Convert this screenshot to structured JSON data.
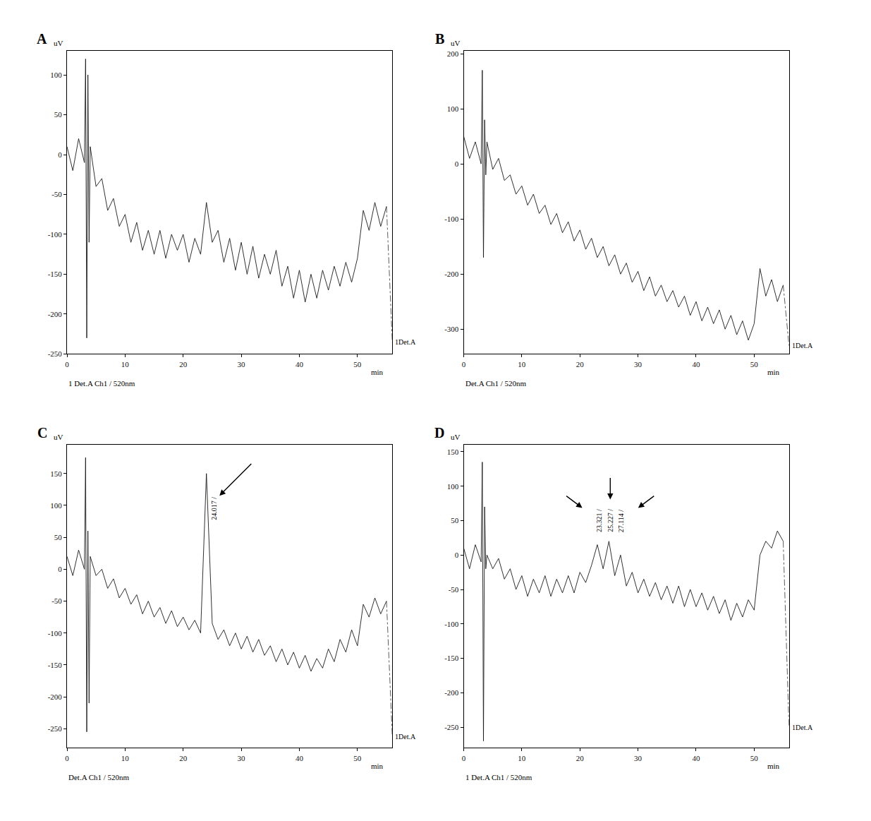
{
  "chart_data": [
    {
      "type": "line",
      "title": "A",
      "subtitle": "1 Det.A Ch1 / 520nm",
      "xlabel": "min",
      "ylabel": "uV",
      "color": "#1a1a1a",
      "x": [
        0,
        1,
        2,
        3,
        3.2,
        3.4,
        3.6,
        3.8,
        4,
        5,
        6,
        7,
        8,
        9,
        10,
        11,
        12,
        13,
        14,
        15,
        16,
        17,
        18,
        19,
        20,
        21,
        22,
        23,
        24,
        25,
        26,
        27,
        28,
        29,
        30,
        31,
        32,
        33,
        34,
        35,
        36,
        37,
        38,
        39,
        40,
        41,
        42,
        43,
        44,
        45,
        46,
        47,
        48,
        49,
        50,
        51,
        52,
        53,
        54,
        55
      ],
      "values": [
        10,
        -20,
        20,
        -10,
        120,
        -230,
        100,
        -110,
        10,
        -40,
        -30,
        -70,
        -55,
        -90,
        -75,
        -110,
        -85,
        -120,
        -95,
        -125,
        -95,
        -130,
        -100,
        -120,
        -100,
        -135,
        -105,
        -125,
        -60,
        -110,
        -95,
        -135,
        -105,
        -145,
        -110,
        -150,
        -115,
        -155,
        -125,
        -150,
        -120,
        -165,
        -140,
        -180,
        -145,
        -185,
        -150,
        -180,
        -145,
        -170,
        -140,
        -165,
        -135,
        -160,
        -130,
        -70,
        -95,
        -60,
        -90,
        -65
      ],
      "xlim": [
        0,
        56
      ],
      "ylim": [
        -250,
        130
      ],
      "xticks": [
        0,
        10,
        20,
        30,
        40,
        50
      ],
      "yticks": [
        -250,
        -200,
        -150,
        -100,
        -50,
        0,
        50,
        100
      ],
      "annotations": [
        {
          "text": "1Det.A",
          "x": 56,
          "y": -235
        }
      ],
      "peak_labels": []
    },
    {
      "type": "line",
      "title": "B",
      "subtitle": "Det.A Ch1 / 520nm",
      "xlabel": "min",
      "ylabel": "uV",
      "color": "#1a1a1a",
      "x": [
        0,
        1,
        2,
        3,
        3.2,
        3.4,
        3.6,
        3.8,
        4,
        5,
        6,
        7,
        8,
        9,
        10,
        11,
        12,
        13,
        14,
        15,
        16,
        17,
        18,
        19,
        20,
        21,
        22,
        23,
        24,
        25,
        26,
        27,
        28,
        29,
        30,
        31,
        32,
        33,
        34,
        35,
        36,
        37,
        38,
        39,
        40,
        41,
        42,
        43,
        44,
        45,
        46,
        47,
        48,
        49,
        50,
        51,
        52,
        53,
        54,
        55
      ],
      "values": [
        50,
        10,
        40,
        0,
        170,
        -170,
        80,
        -20,
        40,
        -10,
        10,
        -30,
        -20,
        -55,
        -40,
        -75,
        -55,
        -90,
        -75,
        -110,
        -90,
        -125,
        -105,
        -140,
        -120,
        -155,
        -135,
        -170,
        -150,
        -185,
        -165,
        -200,
        -180,
        -215,
        -195,
        -230,
        -205,
        -240,
        -220,
        -250,
        -230,
        -260,
        -240,
        -275,
        -250,
        -285,
        -260,
        -290,
        -265,
        -300,
        -275,
        -310,
        -285,
        -320,
        -290,
        -190,
        -240,
        -210,
        -250,
        -220
      ],
      "xlim": [
        0,
        56
      ],
      "ylim": [
        -345,
        205
      ],
      "xticks": [
        0,
        10,
        20,
        30,
        40,
        50
      ],
      "yticks": [
        -300,
        -200,
        -100,
        0,
        100,
        200
      ],
      "annotations": [
        {
          "text": "1Det.A",
          "x": 56,
          "y": -330
        }
      ],
      "peak_labels": []
    },
    {
      "type": "line",
      "title": "C",
      "subtitle": "Det.A Ch1 / 520nm",
      "xlabel": "min",
      "ylabel": "uV",
      "color": "#1a1a1a",
      "x": [
        0,
        1,
        2,
        3,
        3.2,
        3.4,
        3.6,
        3.8,
        4,
        5,
        6,
        7,
        8,
        9,
        10,
        11,
        12,
        13,
        14,
        15,
        16,
        17,
        18,
        19,
        20,
        21,
        22,
        23,
        24,
        25,
        26,
        27,
        28,
        29,
        30,
        31,
        32,
        33,
        34,
        35,
        36,
        37,
        38,
        39,
        40,
        41,
        42,
        43,
        44,
        45,
        46,
        47,
        48,
        49,
        50,
        51,
        52,
        53,
        54,
        55
      ],
      "values": [
        20,
        -10,
        30,
        0,
        175,
        -255,
        60,
        -210,
        20,
        -10,
        0,
        -30,
        -15,
        -45,
        -30,
        -55,
        -40,
        -70,
        -50,
        -75,
        -60,
        -85,
        -65,
        -90,
        -75,
        -95,
        -80,
        -100,
        150,
        -85,
        -110,
        -95,
        -120,
        -100,
        -125,
        -105,
        -130,
        -110,
        -135,
        -120,
        -145,
        -125,
        -150,
        -130,
        -155,
        -135,
        -160,
        -140,
        -155,
        -125,
        -145,
        -110,
        -130,
        -95,
        -120,
        -55,
        -75,
        -45,
        -70,
        -50
      ],
      "xlim": [
        0,
        56
      ],
      "ylim": [
        -280,
        195
      ],
      "xticks": [
        0,
        10,
        20,
        30,
        40,
        50
      ],
      "yticks": [
        -250,
        -200,
        -150,
        -100,
        -50,
        0,
        50,
        100,
        150
      ],
      "annotations": [
        {
          "text": "1Det.A",
          "x": 56,
          "y": -262
        }
      ],
      "peak_labels": [
        {
          "text": "24.017 /",
          "x": 24.017,
          "y": 95
        }
      ]
    },
    {
      "type": "line",
      "title": "D",
      "subtitle": "1 Det.A Ch1 / 520nm",
      "xlabel": "min",
      "ylabel": "uV",
      "color": "#1a1a1a",
      "x": [
        0,
        1,
        2,
        3,
        3.2,
        3.4,
        3.6,
        3.8,
        4,
        5,
        6,
        7,
        8,
        9,
        10,
        11,
        12,
        13,
        14,
        15,
        16,
        17,
        18,
        19,
        20,
        21,
        22,
        23,
        24,
        25,
        26,
        27,
        28,
        29,
        30,
        31,
        32,
        33,
        34,
        35,
        36,
        37,
        38,
        39,
        40,
        41,
        42,
        43,
        44,
        45,
        46,
        47,
        48,
        49,
        50,
        51,
        52,
        53,
        54,
        55
      ],
      "values": [
        10,
        -20,
        15,
        -10,
        135,
        -270,
        70,
        -20,
        0,
        -20,
        -5,
        -35,
        -20,
        -50,
        -30,
        -60,
        -35,
        -55,
        -30,
        -60,
        -35,
        -55,
        -30,
        -55,
        -25,
        -40,
        -15,
        15,
        -20,
        20,
        -30,
        0,
        -45,
        -25,
        -55,
        -35,
        -60,
        -40,
        -65,
        -45,
        -70,
        -45,
        -75,
        -50,
        -75,
        -55,
        -80,
        -60,
        -85,
        -65,
        -95,
        -70,
        -90,
        -65,
        -80,
        0,
        20,
        10,
        35,
        20
      ],
      "xlim": [
        0,
        56
      ],
      "ylim": [
        -280,
        160
      ],
      "xticks": [
        0,
        10,
        20,
        30,
        40,
        50
      ],
      "yticks": [
        -250,
        -200,
        -150,
        -100,
        -50,
        0,
        50,
        100,
        150
      ],
      "annotations": [
        {
          "text": "1Det.A",
          "x": 56,
          "y": -250
        }
      ],
      "peak_labels": [
        {
          "text": "23.321 /",
          "x": 23.321,
          "y": 50
        },
        {
          "text": "25.227 /",
          "x": 25.227,
          "y": 50
        },
        {
          "text": "27.114 /",
          "x": 27.114,
          "y": 50
        }
      ]
    }
  ]
}
